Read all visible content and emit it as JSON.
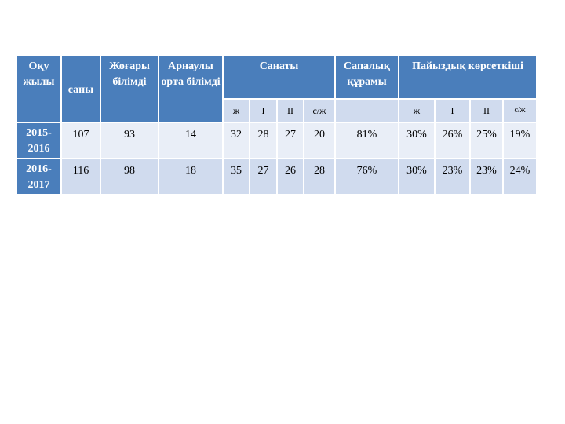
{
  "headers": {
    "year": "Оқу жылы",
    "count": "саны",
    "higher": "Жоғары білімді",
    "special": "Арнаулы орта білімді",
    "category": "Санаты",
    "quality": "Сапалық құрамы",
    "indicator": "Пайыздық көрсеткіші"
  },
  "subheaders": {
    "category": [
      "ж",
      "І",
      "ІІ",
      "с/ж"
    ],
    "indicator": [
      "ж",
      "І",
      "ІІ",
      "с/ж"
    ]
  },
  "rows": [
    {
      "year": "2015-2016",
      "count": "107",
      "higher": "93",
      "special": "14",
      "category": [
        "32",
        "28",
        "27",
        "20"
      ],
      "quality": "81%",
      "indicator": [
        "30%",
        "26%",
        "25%",
        "19%"
      ]
    },
    {
      "year": "2016-2017",
      "count": "116",
      "higher": "98",
      "special": "18",
      "category": [
        "35",
        "27",
        "26",
        "28"
      ],
      "quality": "76%",
      "indicator": [
        "30%",
        "23%",
        "23%",
        "24%"
      ]
    }
  ]
}
